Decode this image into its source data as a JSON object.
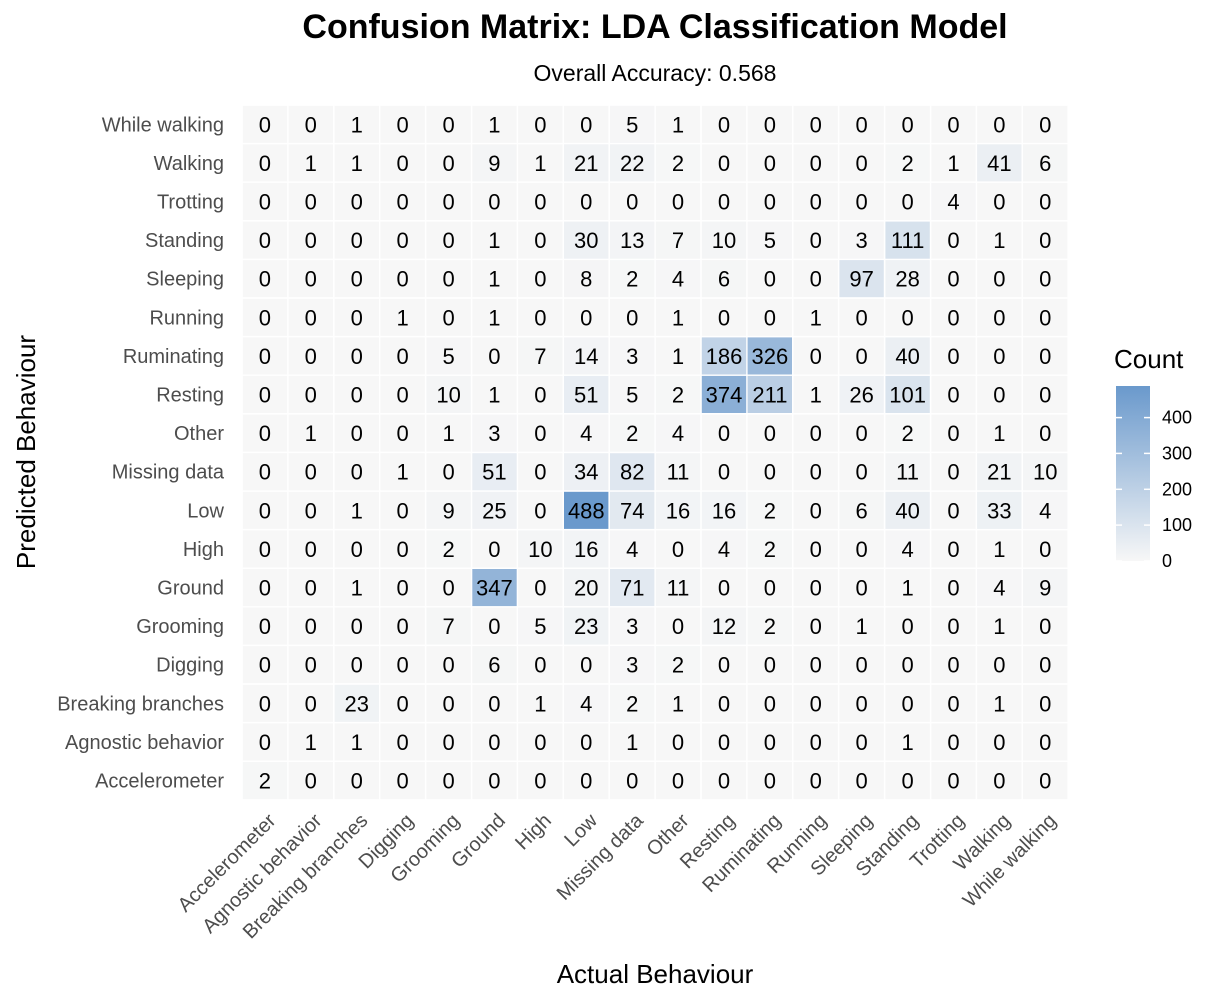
{
  "chart_data": {
    "type": "heatmap",
    "title": "Confusion Matrix: LDA Classification Model",
    "subtitle": "Overall Accuracy: 0.568",
    "xlabel": "Actual Behaviour",
    "ylabel": "Predicted Behaviour",
    "categories": [
      "Accelerometer",
      "Agnostic behavior",
      "Breaking branches",
      "Digging",
      "Grooming",
      "Ground",
      "High",
      "Low",
      "Missing data",
      "Other",
      "Resting",
      "Ruminating",
      "Running",
      "Sleeping",
      "Standing",
      "Trotting",
      "Walking",
      "While walking"
    ],
    "rows": [
      {
        "predicted": "While walking",
        "values": [
          0,
          0,
          1,
          0,
          0,
          1,
          0,
          0,
          5,
          1,
          0,
          0,
          0,
          0,
          0,
          0,
          0,
          0
        ]
      },
      {
        "predicted": "Walking",
        "values": [
          0,
          1,
          1,
          0,
          0,
          9,
          1,
          21,
          22,
          2,
          0,
          0,
          0,
          0,
          2,
          1,
          41,
          6
        ]
      },
      {
        "predicted": "Trotting",
        "values": [
          0,
          0,
          0,
          0,
          0,
          0,
          0,
          0,
          0,
          0,
          0,
          0,
          0,
          0,
          0,
          4,
          0,
          0
        ]
      },
      {
        "predicted": "Standing",
        "values": [
          0,
          0,
          0,
          0,
          0,
          1,
          0,
          30,
          13,
          7,
          10,
          5,
          0,
          3,
          111,
          0,
          1,
          0
        ]
      },
      {
        "predicted": "Sleeping",
        "values": [
          0,
          0,
          0,
          0,
          0,
          1,
          0,
          8,
          2,
          4,
          6,
          0,
          0,
          97,
          28,
          0,
          0,
          0
        ]
      },
      {
        "predicted": "Running",
        "values": [
          0,
          0,
          0,
          1,
          0,
          1,
          0,
          0,
          0,
          1,
          0,
          0,
          1,
          0,
          0,
          0,
          0,
          0
        ]
      },
      {
        "predicted": "Ruminating",
        "values": [
          0,
          0,
          0,
          0,
          5,
          0,
          7,
          14,
          3,
          1,
          186,
          326,
          0,
          0,
          40,
          0,
          0,
          0
        ]
      },
      {
        "predicted": "Resting",
        "values": [
          0,
          0,
          0,
          0,
          10,
          1,
          0,
          51,
          5,
          2,
          374,
          211,
          1,
          26,
          101,
          0,
          0,
          0
        ]
      },
      {
        "predicted": "Other",
        "values": [
          0,
          1,
          0,
          0,
          1,
          3,
          0,
          4,
          2,
          4,
          0,
          0,
          0,
          0,
          2,
          0,
          1,
          0
        ]
      },
      {
        "predicted": "Missing data",
        "values": [
          0,
          0,
          0,
          1,
          0,
          51,
          0,
          34,
          82,
          11,
          0,
          0,
          0,
          0,
          11,
          0,
          21,
          10
        ]
      },
      {
        "predicted": "Low",
        "values": [
          0,
          0,
          1,
          0,
          9,
          25,
          0,
          488,
          74,
          16,
          16,
          2,
          0,
          6,
          40,
          0,
          33,
          4
        ]
      },
      {
        "predicted": "High",
        "values": [
          0,
          0,
          0,
          0,
          2,
          0,
          10,
          16,
          4,
          0,
          4,
          2,
          0,
          0,
          4,
          0,
          1,
          0
        ]
      },
      {
        "predicted": "Ground",
        "values": [
          0,
          0,
          1,
          0,
          0,
          347,
          0,
          20,
          71,
          11,
          0,
          0,
          0,
          0,
          1,
          0,
          4,
          9
        ]
      },
      {
        "predicted": "Grooming",
        "values": [
          0,
          0,
          0,
          0,
          7,
          0,
          5,
          23,
          3,
          0,
          12,
          2,
          0,
          1,
          0,
          0,
          1,
          0
        ]
      },
      {
        "predicted": "Digging",
        "values": [
          0,
          0,
          0,
          0,
          0,
          6,
          0,
          0,
          3,
          2,
          0,
          0,
          0,
          0,
          0,
          0,
          0,
          0
        ]
      },
      {
        "predicted": "Breaking branches",
        "values": [
          0,
          0,
          23,
          0,
          0,
          0,
          1,
          4,
          2,
          1,
          0,
          0,
          0,
          0,
          0,
          0,
          1,
          0
        ]
      },
      {
        "predicted": "Agnostic behavior",
        "values": [
          0,
          1,
          1,
          0,
          0,
          0,
          0,
          0,
          1,
          0,
          0,
          0,
          0,
          0,
          1,
          0,
          0,
          0
        ]
      },
      {
        "predicted": "Accelerometer",
        "values": [
          2,
          0,
          0,
          0,
          0,
          0,
          0,
          0,
          0,
          0,
          0,
          0,
          0,
          0,
          0,
          0,
          0,
          0
        ]
      }
    ],
    "legend": {
      "title": "Count",
      "ticks": [
        0,
        100,
        200,
        300,
        400
      ],
      "range": [
        0,
        488
      ],
      "placement": "right",
      "low_color": "#f7f7f7",
      "high_color": "#6a99cc"
    }
  }
}
